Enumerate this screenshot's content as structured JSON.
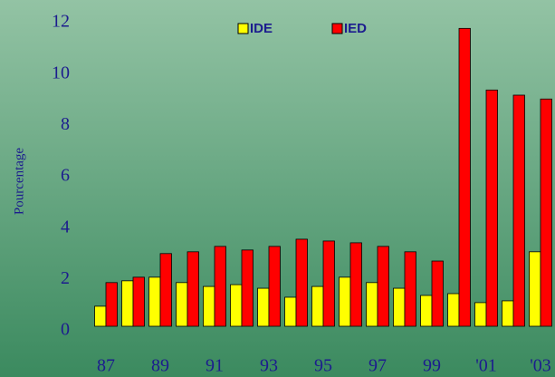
{
  "chart_data": {
    "type": "bar",
    "y_label": "Pourcentage",
    "categories": [
      "87",
      null,
      "89",
      null,
      "91",
      null,
      "93",
      null,
      "95",
      null,
      "97",
      null,
      "99",
      null,
      "'01",
      null,
      "'03"
    ],
    "series": [
      {
        "name": "IDE",
        "color": "#ffff00",
        "values": [
          0.78,
          1.77,
          1.91,
          1.7,
          1.55,
          1.62,
          1.48,
          1.13,
          1.55,
          1.91,
          1.7,
          1.48,
          1.2,
          1.27,
          0.92,
          0.99,
          2.9
        ]
      },
      {
        "name": "IED",
        "color": "#ff0000",
        "values": [
          1.7,
          1.91,
          2.83,
          2.9,
          3.11,
          2.97,
          3.11,
          3.39,
          3.32,
          3.25,
          3.11,
          2.9,
          2.54,
          11.6,
          9.2,
          9.0,
          8.85
        ]
      }
    ],
    "ylim": [
      0,
      12
    ],
    "yticks": [
      0,
      2,
      4,
      6,
      8,
      10,
      12
    ]
  }
}
